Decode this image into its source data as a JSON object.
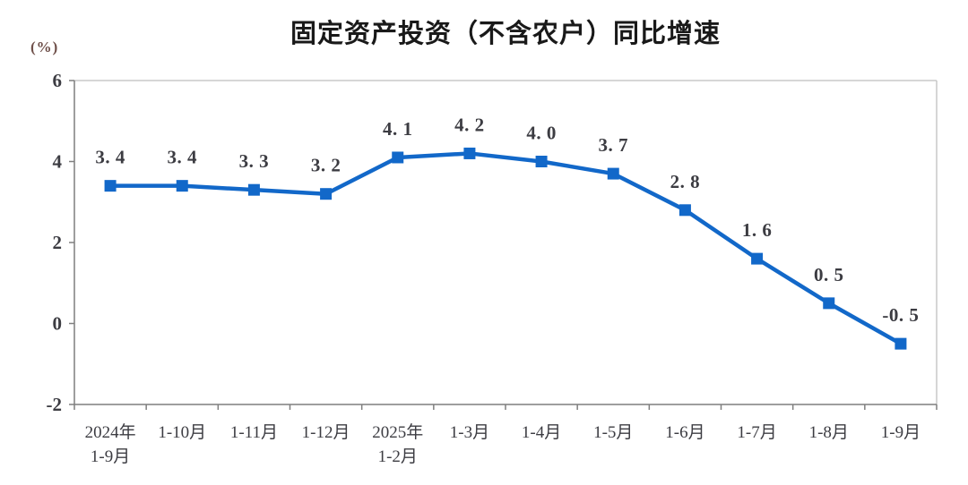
{
  "page": {
    "background": "#ffffff"
  },
  "chart_data": {
    "type": "line",
    "title": "固定资产投资（不含农户）同比增速",
    "unit_label": "(%)",
    "xlabel": "",
    "ylabel": "(%)",
    "categories": [
      [
        "2024年",
        "1-9月"
      ],
      [
        "1-10月"
      ],
      [
        "1-11月"
      ],
      [
        "1-12月"
      ],
      [
        "2025年",
        "1-2月"
      ],
      [
        "1-3月"
      ],
      [
        "1-4月"
      ],
      [
        "1-5月"
      ],
      [
        "1-6月"
      ],
      [
        "1-7月"
      ],
      [
        "1-8月"
      ],
      [
        "1-9月"
      ]
    ],
    "values": [
      3.4,
      3.4,
      3.3,
      3.2,
      4.1,
      4.2,
      4.0,
      3.7,
      2.8,
      1.6,
      0.5,
      -0.5
    ],
    "labels": [
      "3. 4",
      "3. 4",
      "3. 3",
      "3. 2",
      "4. 1",
      "4. 2",
      "4. 0",
      "3. 7",
      "2. 8",
      "1. 6",
      "0. 5",
      "-0. 5"
    ],
    "ylim": [
      -2,
      6
    ],
    "yticks": [
      6,
      4,
      2,
      0,
      -2
    ],
    "grid": false,
    "legend": null,
    "marker": "square",
    "colors": {
      "line": "#1268c9",
      "marker": "#1268c9",
      "label_text": "#3c3c42",
      "tick_text": "#3c3c42",
      "xtick_text": "#3c3c42",
      "title_text": "#191919",
      "unit_text": "#6e4f49",
      "axis": "#7f7f7f",
      "border": "#c9c9c9",
      "background": "#ffffff"
    }
  }
}
